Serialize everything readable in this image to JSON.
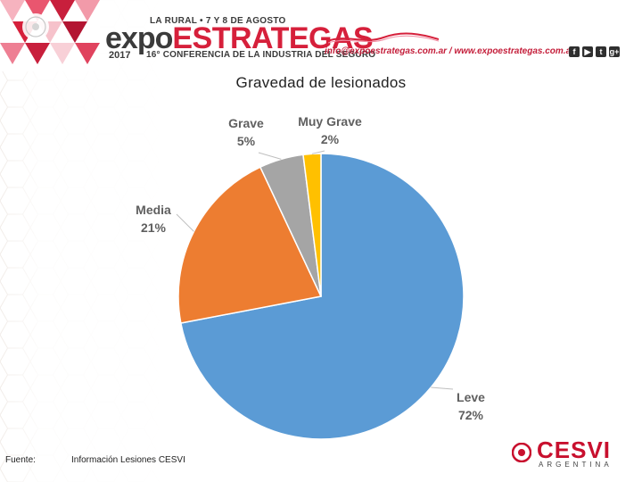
{
  "header": {
    "event_line": "LA RURAL • 7 Y 8 DE AGOSTO",
    "logo_part1": "expo",
    "logo_part2": "ESTRATEGAS",
    "year": "2017",
    "subtitle": "16° CONFERENCIA DE LA INDUSTRIA DEL SEGURO",
    "contact": "info@expoestrategas.com.ar / www.expoestrategas.com.ar",
    "social_icons": [
      "facebook-icon",
      "youtube-icon",
      "twitter-icon",
      "googleplus-icon"
    ],
    "social_glyphs": [
      "f",
      "▶",
      "t",
      "g+"
    ]
  },
  "chart_data": {
    "type": "pie",
    "title": "Gravedad de lesionados",
    "slices": [
      {
        "label": "Leve",
        "value": 72,
        "value_label": "72%",
        "color": "#5b9bd5"
      },
      {
        "label": "Media",
        "value": 21,
        "value_label": "21%",
        "color": "#ed7d31"
      },
      {
        "label": "Grave",
        "value": 5,
        "value_label": "5%",
        "color": "#a5a5a5"
      },
      {
        "label": "Muy Grave",
        "value": 2,
        "value_label": "2%",
        "color": "#ffc000"
      }
    ]
  },
  "footer": {
    "source_label": "Fuente:",
    "source_text": "Información Lesiones CESVI",
    "brand": "CESVI",
    "brand_sub": "ARGENTINA"
  },
  "colors": {
    "brand_red": "#d6203b",
    "cesvi_red": "#c8102e"
  }
}
